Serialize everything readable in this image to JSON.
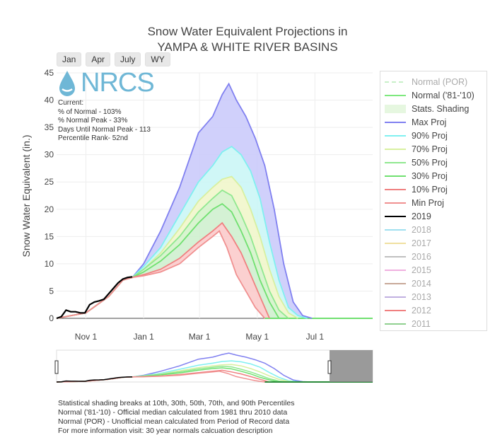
{
  "title_line1": "Snow Water Equivalent Projections in",
  "title_line2": "YAMPA & WHITE RIVER BASINS",
  "buttons": [
    "Jan",
    "Apr",
    "July",
    "WY"
  ],
  "logo_text": "NRCS",
  "current_text": [
    "Current:",
    "% of Normal - 103%",
    "% Normal Peak - 33%",
    "Days Until Normal Peak - 113",
    "Percentile Rank- 52nd"
  ],
  "notes": [
    "Statistical shading breaks at 10th, 30th, 50th, 70th, and 90th Percentiles",
    "Normal ('81-'10) - Official median calculated from 1981 thru 2010 data",
    "Normal (POR) - Unofficial mean calculated from Period of Record data",
    "For more information visit: 30 year normals calcuation description"
  ],
  "legend": [
    {
      "label": "Normal (POR)",
      "color": "#c8f0c8",
      "style": "dash",
      "faded": true
    },
    {
      "label": "Normal ('81-'10)",
      "color": "#7ee87e",
      "style": "line",
      "faded": false
    },
    {
      "label": "Stats. Shading",
      "color": "#e6f7e0",
      "style": "box",
      "faded": false
    },
    {
      "label": "Max Proj",
      "color": "#8080f0",
      "style": "line",
      "faded": false
    },
    {
      "label": "90% Proj",
      "color": "#80f0f0",
      "style": "line",
      "faded": false
    },
    {
      "label": "70% Proj",
      "color": "#d8f0a0",
      "style": "line",
      "faded": false
    },
    {
      "label": "50% Proj",
      "color": "#90e890",
      "style": "line",
      "faded": false
    },
    {
      "label": "30% Proj",
      "color": "#70e070",
      "style": "line",
      "faded": false
    },
    {
      "label": "10% Proj",
      "color": "#f08080",
      "style": "line",
      "faded": false
    },
    {
      "label": "Min Proj",
      "color": "#f09090",
      "style": "line",
      "faded": false
    },
    {
      "label": "2019",
      "color": "#000000",
      "style": "line",
      "faded": false
    },
    {
      "label": "2018",
      "color": "#a0e0f0",
      "style": "line",
      "faded": true
    },
    {
      "label": "2017",
      "color": "#f0e0a0",
      "style": "line",
      "faded": true
    },
    {
      "label": "2016",
      "color": "#c0c0c0",
      "style": "line",
      "faded": true
    },
    {
      "label": "2015",
      "color": "#f0b0e0",
      "style": "line",
      "faded": true
    },
    {
      "label": "2014",
      "color": "#c8a898",
      "style": "line",
      "faded": true
    },
    {
      "label": "2013",
      "color": "#c0b0e0",
      "style": "line",
      "faded": true
    },
    {
      "label": "2012",
      "color": "#f08080",
      "style": "line",
      "faded": true
    },
    {
      "label": "2011",
      "color": "#90d090",
      "style": "line",
      "faded": true
    }
  ],
  "chart_data": {
    "type": "area",
    "ylabel": "Snow Water Equivalent (in.)",
    "ylim": [
      0,
      45
    ],
    "yticks": [
      0,
      5,
      10,
      15,
      20,
      25,
      30,
      35,
      40,
      45
    ],
    "xticks": [
      "Nov 1",
      "Jan 1",
      "Mar 1",
      "May 1",
      "Jul 1"
    ],
    "xtick_days": [
      31,
      92,
      151,
      212,
      273
    ],
    "xlim_days": [
      0,
      334
    ],
    "series": [
      {
        "name": "Max Proj",
        "color": "#8080f0",
        "x": [
          0,
          31,
          55,
          70,
          80,
          92,
          110,
          130,
          150,
          165,
          175,
          182,
          190,
          200,
          210,
          220,
          230,
          240,
          250,
          260,
          270
        ],
        "y": [
          0,
          1,
          4,
          7,
          7.5,
          10,
          16,
          24,
          34,
          37,
          41,
          43,
          40,
          37,
          33,
          28,
          20,
          10,
          3,
          0.5,
          0
        ]
      },
      {
        "name": "90% Proj",
        "color": "#80f0f0",
        "x": [
          0,
          31,
          55,
          70,
          80,
          92,
          110,
          130,
          150,
          165,
          175,
          185,
          195,
          205,
          215,
          225,
          235,
          245,
          255,
          265
        ],
        "y": [
          0,
          1,
          4,
          7,
          7.5,
          9.5,
          13,
          19,
          25,
          28,
          30.5,
          31.5,
          30,
          27,
          22,
          14,
          7,
          2,
          0.5,
          0
        ]
      },
      {
        "name": "70% Proj",
        "color": "#d8f0a0",
        "x": [
          0,
          31,
          55,
          70,
          80,
          92,
          110,
          130,
          150,
          165,
          175,
          185,
          195,
          205,
          215,
          225,
          235,
          245,
          255
        ],
        "y": [
          0,
          1,
          4,
          7,
          7.5,
          9,
          12,
          16.5,
          21.5,
          24,
          25.5,
          26,
          24,
          20,
          15,
          9,
          4,
          1,
          0
        ]
      },
      {
        "name": "50% Proj",
        "color": "#90e890",
        "x": [
          0,
          31,
          55,
          70,
          80,
          92,
          110,
          130,
          150,
          165,
          175,
          185,
          195,
          205,
          215,
          225,
          235,
          245
        ],
        "y": [
          0,
          1,
          4,
          7,
          7.5,
          9,
          11.5,
          15,
          19.5,
          22,
          23.5,
          22.5,
          19,
          15,
          10,
          5,
          1.5,
          0
        ]
      },
      {
        "name": "30% Proj",
        "color": "#70e070",
        "x": [
          0,
          31,
          55,
          70,
          80,
          92,
          110,
          130,
          150,
          165,
          175,
          185,
          195,
          205,
          215,
          225,
          235
        ],
        "y": [
          0,
          1,
          4,
          7,
          7.5,
          8.5,
          10.5,
          13.5,
          17.5,
          20,
          21,
          19.5,
          16,
          12,
          7,
          3,
          0
        ]
      },
      {
        "name": "10% Proj",
        "color": "#f08080",
        "x": [
          0,
          31,
          55,
          70,
          80,
          92,
          110,
          130,
          150,
          165,
          175,
          185,
          195,
          205,
          215,
          225
        ],
        "y": [
          0,
          1,
          4,
          7,
          7.5,
          8,
          9,
          11,
          14,
          16,
          17.5,
          15,
          12,
          8,
          4,
          0
        ]
      },
      {
        "name": "Min Proj",
        "color": "#f09090",
        "x": [
          0,
          31,
          55,
          70,
          80,
          92,
          110,
          130,
          150,
          165,
          172,
          180,
          190,
          200,
          210,
          220
        ],
        "y": [
          0,
          1,
          4,
          7,
          7.5,
          7.8,
          8.5,
          10,
          13,
          15,
          16,
          13,
          8,
          5,
          2,
          0
        ]
      },
      {
        "name": "2019",
        "color": "#000000",
        "x": [
          0,
          5,
          10,
          15,
          20,
          25,
          30,
          35,
          40,
          45,
          50,
          55,
          60,
          65,
          70,
          75,
          80
        ],
        "y": [
          0,
          0.3,
          1.5,
          1.2,
          1.2,
          1,
          1,
          2.5,
          3,
          3.2,
          3.5,
          4.5,
          5.5,
          6.5,
          7.2,
          7.5,
          7.6
        ]
      }
    ]
  }
}
